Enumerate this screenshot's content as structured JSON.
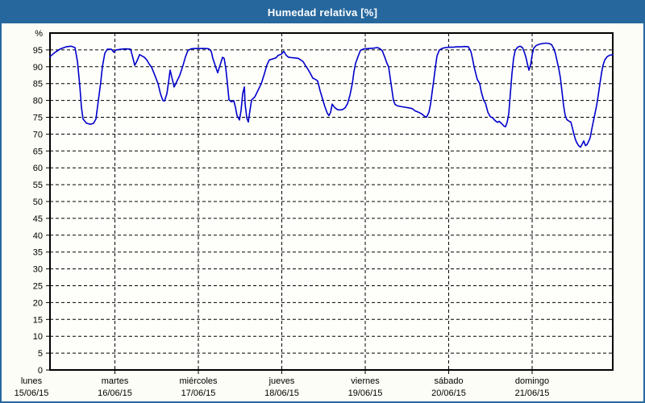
{
  "window": {
    "title": "Humedad relativa [%]"
  },
  "chart_data": {
    "type": "line",
    "title": "Humedad relativa [%]",
    "unit_label": "%",
    "grid": "dashed-black",
    "legend": "none",
    "colors": {
      "line": "#0000CC",
      "frame": "#000000",
      "titlebar": "#26689E",
      "border": "#26689E",
      "background": "#FCFDF6",
      "plot_bg": "#FEFEFB"
    },
    "y_axis": {
      "min": 0,
      "max": 100,
      "tick_step": 5,
      "tick_min": 0,
      "tick_max": 95
    },
    "x_axis": {
      "range_days": [
        0.222,
        6.966
      ],
      "days": [
        {
          "weekday": "lunes",
          "date": "15/06/15"
        },
        {
          "weekday": "martes",
          "date": "16/06/15"
        },
        {
          "weekday": "miércoles",
          "date": "17/06/15"
        },
        {
          "weekday": "jueves",
          "date": "18/06/15"
        },
        {
          "weekday": "viernes",
          "date": "19/06/15"
        },
        {
          "weekday": "sábado",
          "date": "20/06/15"
        },
        {
          "weekday": "domingo",
          "date": "21/06/15"
        }
      ]
    },
    "series": [
      {
        "name": "Humedad relativa",
        "points": [
          [
            0.222,
            93.0
          ],
          [
            0.28,
            94.2
          ],
          [
            0.348,
            95.3
          ],
          [
            0.415,
            95.9
          ],
          [
            0.473,
            96.1
          ],
          [
            0.522,
            95.7
          ],
          [
            0.551,
            91.5
          ],
          [
            0.58,
            84.0
          ],
          [
            0.599,
            78.0
          ],
          [
            0.618,
            74.5
          ],
          [
            0.657,
            73.3
          ],
          [
            0.705,
            72.9
          ],
          [
            0.744,
            73.2
          ],
          [
            0.773,
            74.5
          ],
          [
            0.802,
            80.0
          ],
          [
            0.831,
            85.5
          ],
          [
            0.85,
            90.0
          ],
          [
            0.879,
            94.0
          ],
          [
            0.908,
            95.2
          ],
          [
            0.957,
            95.2
          ],
          [
            0.986,
            94.3
          ],
          [
            1.014,
            95.0
          ],
          [
            1.072,
            95.2
          ],
          [
            1.13,
            95.3
          ],
          [
            1.188,
            95.2
          ],
          [
            1.217,
            92.5
          ],
          [
            1.237,
            90.4
          ],
          [
            1.266,
            91.8
          ],
          [
            1.295,
            93.6
          ],
          [
            1.324,
            93.2
          ],
          [
            1.353,
            92.8
          ],
          [
            1.382,
            92.0
          ],
          [
            1.411,
            90.8
          ],
          [
            1.44,
            89.8
          ],
          [
            1.478,
            87.5
          ],
          [
            1.517,
            85.0
          ],
          [
            1.546,
            82.0
          ],
          [
            1.575,
            80.0
          ],
          [
            1.594,
            79.8
          ],
          [
            1.623,
            82.0
          ],
          [
            1.643,
            85.5
          ],
          [
            1.662,
            89.0
          ],
          [
            1.691,
            86.0
          ],
          [
            1.71,
            84.0
          ],
          [
            1.739,
            85.5
          ],
          [
            1.778,
            87.5
          ],
          [
            1.817,
            90.5
          ],
          [
            1.846,
            93.0
          ],
          [
            1.875,
            94.8
          ],
          [
            1.913,
            95.3
          ],
          [
            1.961,
            95.4
          ],
          [
            2.0,
            95.4
          ],
          [
            2.039,
            95.4
          ],
          [
            2.087,
            95.4
          ],
          [
            2.126,
            95.3
          ],
          [
            2.155,
            94.5
          ],
          [
            2.174,
            92.5
          ],
          [
            2.203,
            90.3
          ],
          [
            2.232,
            88.2
          ],
          [
            2.261,
            90.5
          ],
          [
            2.29,
            92.8
          ],
          [
            2.309,
            92.5
          ],
          [
            2.329,
            89.5
          ],
          [
            2.348,
            85.2
          ],
          [
            2.367,
            80.2
          ],
          [
            2.396,
            79.6
          ],
          [
            2.425,
            79.9
          ],
          [
            2.444,
            78.0
          ],
          [
            2.464,
            75.5
          ],
          [
            2.493,
            74.2
          ],
          [
            2.512,
            77.0
          ],
          [
            2.531,
            82.0
          ],
          [
            2.551,
            84.0
          ],
          [
            2.56,
            79.0
          ],
          [
            2.58,
            74.8
          ],
          [
            2.599,
            73.6
          ],
          [
            2.618,
            77.0
          ],
          [
            2.638,
            80.2
          ],
          [
            2.676,
            81.0
          ],
          [
            2.715,
            83.0
          ],
          [
            2.754,
            85.0
          ],
          [
            2.792,
            88.0
          ],
          [
            2.821,
            90.5
          ],
          [
            2.85,
            92.0
          ],
          [
            2.889,
            92.3
          ],
          [
            2.928,
            92.6
          ],
          [
            2.957,
            93.4
          ],
          [
            2.995,
            93.7
          ],
          [
            3.024,
            94.6
          ],
          [
            3.053,
            93.4
          ],
          [
            3.082,
            92.8
          ],
          [
            3.121,
            92.7
          ],
          [
            3.159,
            92.6
          ],
          [
            3.198,
            92.5
          ],
          [
            3.227,
            92.0
          ],
          [
            3.256,
            91.5
          ],
          [
            3.285,
            90.3
          ],
          [
            3.314,
            89.2
          ],
          [
            3.343,
            88.0
          ],
          [
            3.372,
            86.6
          ],
          [
            3.401,
            86.3
          ],
          [
            3.43,
            85.8
          ],
          [
            3.459,
            82.9
          ],
          [
            3.488,
            80.5
          ],
          [
            3.517,
            78.1
          ],
          [
            3.546,
            76.2
          ],
          [
            3.565,
            75.5
          ],
          [
            3.585,
            76.5
          ],
          [
            3.604,
            78.9
          ],
          [
            3.623,
            78.2
          ],
          [
            3.643,
            77.7
          ],
          [
            3.672,
            77.2
          ],
          [
            3.7,
            77.2
          ],
          [
            3.729,
            77.3
          ],
          [
            3.758,
            77.8
          ],
          [
            3.787,
            79.0
          ],
          [
            3.816,
            81.5
          ],
          [
            3.845,
            85.0
          ],
          [
            3.865,
            88.5
          ],
          [
            3.884,
            91.0
          ],
          [
            3.913,
            93.0
          ],
          [
            3.942,
            94.8
          ],
          [
            3.971,
            95.2
          ],
          [
            4.0,
            95.3
          ],
          [
            4.048,
            95.4
          ],
          [
            4.097,
            95.5
          ],
          [
            4.145,
            95.7
          ],
          [
            4.174,
            95.4
          ],
          [
            4.203,
            94.8
          ],
          [
            4.232,
            93.0
          ],
          [
            4.261,
            91.0
          ],
          [
            4.28,
            90.0
          ],
          [
            4.309,
            85.0
          ],
          [
            4.338,
            80.0
          ],
          [
            4.357,
            78.8
          ],
          [
            4.386,
            78.4
          ],
          [
            4.425,
            78.2
          ],
          [
            4.473,
            78.0
          ],
          [
            4.522,
            77.8
          ],
          [
            4.56,
            77.6
          ],
          [
            4.599,
            76.9
          ],
          [
            4.638,
            76.5
          ],
          [
            4.676,
            76.0
          ],
          [
            4.705,
            75.4
          ],
          [
            4.734,
            75.0
          ],
          [
            4.763,
            76.5
          ],
          [
            4.783,
            79.0
          ],
          [
            4.802,
            82.5
          ],
          [
            4.821,
            86.0
          ],
          [
            4.841,
            90.0
          ],
          [
            4.86,
            93.2
          ],
          [
            4.889,
            95.0
          ],
          [
            4.928,
            95.5
          ],
          [
            4.966,
            95.7
          ],
          [
            5.005,
            95.8
          ],
          [
            5.053,
            95.8
          ],
          [
            5.101,
            95.9
          ],
          [
            5.15,
            95.9
          ],
          [
            5.198,
            96.0
          ],
          [
            5.237,
            95.9
          ],
          [
            5.266,
            94.5
          ],
          [
            5.285,
            92.5
          ],
          [
            5.304,
            90.0
          ],
          [
            5.324,
            88.0
          ],
          [
            5.343,
            86.2
          ],
          [
            5.372,
            85.0
          ],
          [
            5.391,
            82.5
          ],
          [
            5.42,
            80.0
          ],
          [
            5.44,
            79.2
          ],
          [
            5.469,
            76.5
          ],
          [
            5.498,
            75.2
          ],
          [
            5.527,
            74.8
          ],
          [
            5.556,
            74.0
          ],
          [
            5.585,
            73.5
          ],
          [
            5.604,
            73.8
          ],
          [
            5.633,
            73.2
          ],
          [
            5.662,
            72.4
          ],
          [
            5.681,
            72.2
          ],
          [
            5.7,
            73.5
          ],
          [
            5.72,
            76.0
          ],
          [
            5.739,
            82.0
          ],
          [
            5.758,
            88.0
          ],
          [
            5.778,
            92.5
          ],
          [
            5.797,
            94.8
          ],
          [
            5.826,
            95.8
          ],
          [
            5.855,
            96.1
          ],
          [
            5.884,
            95.7
          ],
          [
            5.903,
            94.5
          ],
          [
            5.923,
            93.0
          ],
          [
            5.942,
            91.0
          ],
          [
            5.961,
            89.0
          ],
          [
            5.981,
            90.5
          ],
          [
            6.0,
            93.5
          ],
          [
            6.019,
            95.5
          ],
          [
            6.048,
            96.3
          ],
          [
            6.087,
            96.7
          ],
          [
            6.126,
            96.9
          ],
          [
            6.164,
            97.0
          ],
          [
            6.203,
            96.9
          ],
          [
            6.232,
            96.6
          ],
          [
            6.261,
            95.3
          ],
          [
            6.28,
            93.8
          ],
          [
            6.3,
            91.5
          ],
          [
            6.319,
            89.5
          ],
          [
            6.338,
            86.8
          ],
          [
            6.358,
            82.5
          ],
          [
            6.377,
            78.5
          ],
          [
            6.396,
            75.6
          ],
          [
            6.415,
            74.3
          ],
          [
            6.444,
            73.8
          ],
          [
            6.464,
            73.6
          ],
          [
            6.483,
            71.8
          ],
          [
            6.502,
            69.8
          ],
          [
            6.522,
            68.2
          ],
          [
            6.541,
            67.2
          ],
          [
            6.56,
            66.5
          ],
          [
            6.58,
            66.1
          ],
          [
            6.599,
            67.0
          ],
          [
            6.618,
            68.0
          ],
          [
            6.638,
            66.6
          ],
          [
            6.657,
            66.9
          ],
          [
            6.676,
            67.8
          ],
          [
            6.696,
            69.0
          ],
          [
            6.715,
            71.5
          ],
          [
            6.744,
            75.0
          ],
          [
            6.773,
            78.5
          ],
          [
            6.792,
            81.5
          ],
          [
            6.812,
            85.0
          ],
          [
            6.831,
            88.0
          ],
          [
            6.85,
            90.5
          ],
          [
            6.87,
            92.0
          ],
          [
            6.899,
            93.0
          ],
          [
            6.928,
            93.4
          ],
          [
            6.947,
            93.5
          ],
          [
            6.966,
            93.6
          ]
        ]
      }
    ]
  }
}
